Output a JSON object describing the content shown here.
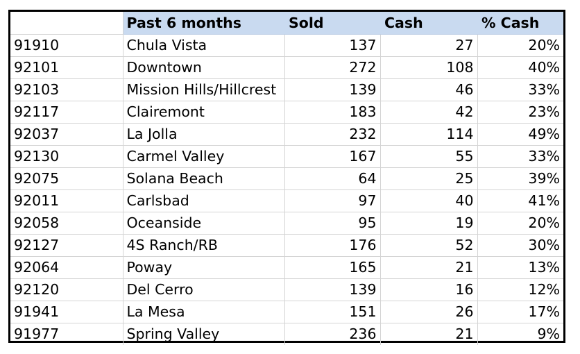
{
  "table": {
    "headers": [
      "",
      "Past 6 months",
      "Sold",
      "Cash",
      "% Cash"
    ],
    "rows": [
      {
        "zip": "91910",
        "area": "Chula Vista",
        "sold": "137",
        "cash": "27",
        "pct": "20%"
      },
      {
        "zip": "92101",
        "area": "Downtown",
        "sold": "272",
        "cash": "108",
        "pct": "40%"
      },
      {
        "zip": "92103",
        "area": "Mission Hills/Hillcrest",
        "sold": "139",
        "cash": "46",
        "pct": "33%"
      },
      {
        "zip": "92117",
        "area": "Clairemont",
        "sold": "183",
        "cash": "42",
        "pct": "23%"
      },
      {
        "zip": "92037",
        "area": "La Jolla",
        "sold": "232",
        "cash": "114",
        "pct": "49%"
      },
      {
        "zip": "92130",
        "area": "Carmel Valley",
        "sold": "167",
        "cash": "55",
        "pct": "33%"
      },
      {
        "zip": "92075",
        "area": "Solana Beach",
        "sold": "64",
        "cash": "25",
        "pct": "39%"
      },
      {
        "zip": "92011",
        "area": "Carlsbad",
        "sold": "97",
        "cash": "40",
        "pct": "41%"
      },
      {
        "zip": "92058",
        "area": "Oceanside",
        "sold": "95",
        "cash": "19",
        "pct": "20%"
      },
      {
        "zip": "92127",
        "area": "4S Ranch/RB",
        "sold": "176",
        "cash": "52",
        "pct": "30%"
      },
      {
        "zip": "92064",
        "area": "Poway",
        "sold": "165",
        "cash": "21",
        "pct": "13%"
      },
      {
        "zip": "92120",
        "area": "Del Cerro",
        "sold": "139",
        "cash": "16",
        "pct": "12%"
      },
      {
        "zip": "91941",
        "area": "La Mesa",
        "sold": "151",
        "cash": "26",
        "pct": "17%"
      },
      {
        "zip": "91977",
        "area": "Spring Valley",
        "sold": "236",
        "cash": "21",
        "pct": "9%"
      }
    ]
  },
  "colors": {
    "header_fill": "#c9daf0",
    "grid_line": "#d4d4d4",
    "outer_border": "#000000"
  }
}
